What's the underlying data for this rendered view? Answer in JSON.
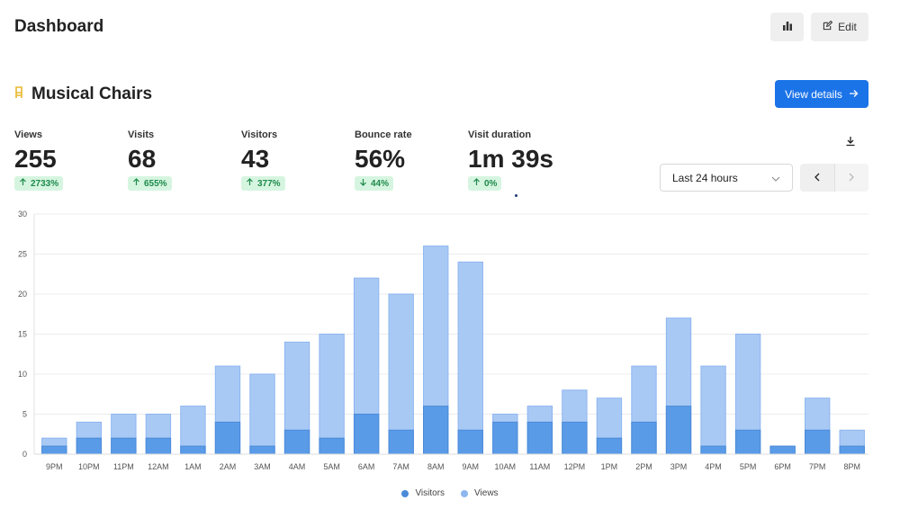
{
  "header": {
    "title": "Dashboard",
    "edit_label": "Edit"
  },
  "website": {
    "name": "Musical Chairs",
    "view_details_label": "View details"
  },
  "metrics": [
    {
      "label": "Views",
      "value": "255",
      "change": "2733%",
      "direction": "up"
    },
    {
      "label": "Visits",
      "value": "68",
      "change": "655%",
      "direction": "up"
    },
    {
      "label": "Visitors",
      "value": "43",
      "change": "377%",
      "direction": "up"
    },
    {
      "label": "Bounce rate",
      "value": "56%",
      "change": "44%",
      "direction": "down"
    },
    {
      "label": "Visit duration",
      "value": "1m 39s",
      "change": "0%",
      "direction": "up"
    }
  ],
  "date_range": {
    "selected": "Last 24 hours"
  },
  "colors": {
    "accent": "#1b73e8",
    "visitors_fill": "#5a9be8",
    "visitors_stroke": "#4a8ad8",
    "views_fill": "#a9c9f5",
    "views_stroke": "#8db6ef",
    "change_bg": "#d6f5e0",
    "change_text": "#1e8a4c",
    "icon_star": "#e8b82d"
  },
  "icons": {
    "chart": "bar-chart-icon",
    "edit": "edit-icon",
    "site": "chair-icon",
    "arrow_right": "arrow-right-icon",
    "download": "download-icon",
    "chevron_down": "chevron-down-icon",
    "prev": "chevron-left-icon",
    "next": "chevron-right-icon"
  },
  "chart_data": {
    "type": "bar",
    "stacked": "overlay",
    "categories": [
      "9PM",
      "10PM",
      "11PM",
      "12AM",
      "1AM",
      "2AM",
      "3AM",
      "4AM",
      "5AM",
      "6AM",
      "7AM",
      "8AM",
      "9AM",
      "10AM",
      "11AM",
      "12PM",
      "1PM",
      "2PM",
      "3PM",
      "4PM",
      "5PM",
      "6PM",
      "7PM",
      "8PM"
    ],
    "series": [
      {
        "name": "Visitors",
        "values": [
          1,
          2,
          2,
          2,
          1,
          4,
          1,
          3,
          2,
          5,
          3,
          6,
          3,
          4,
          4,
          4,
          2,
          4,
          6,
          1,
          3,
          1,
          3,
          1
        ]
      },
      {
        "name": "Views",
        "values": [
          2,
          4,
          5,
          5,
          6,
          11,
          10,
          14,
          15,
          22,
          20,
          26,
          24,
          5,
          6,
          8,
          7,
          11,
          17,
          11,
          15,
          1,
          7,
          3
        ]
      }
    ],
    "ylim": [
      0,
      30
    ],
    "yticks": [
      0,
      5,
      10,
      15,
      20,
      25,
      30
    ],
    "grid": true,
    "legend": "bottom"
  }
}
